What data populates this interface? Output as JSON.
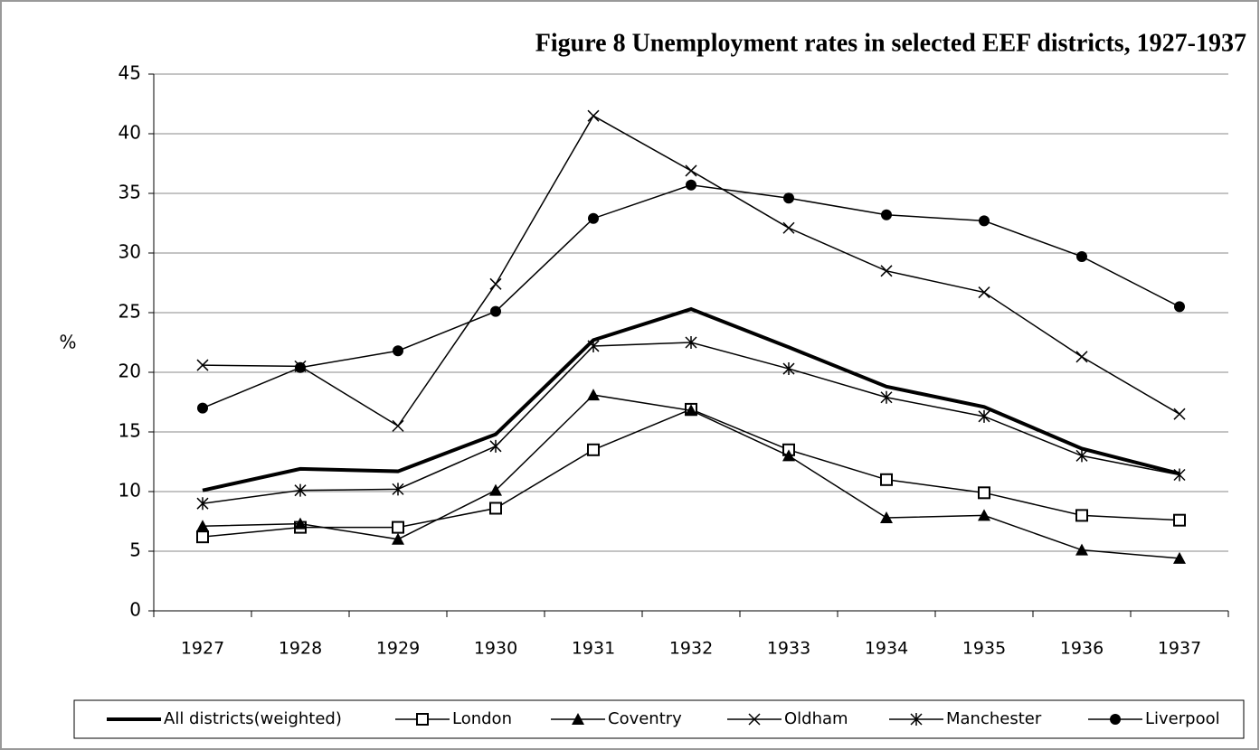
{
  "chart_data": {
    "type": "line",
    "title": "Figure 8 Unemployment rates in selected EEF districts, 1927-1937",
    "y_label": "%",
    "categories": [
      "1927",
      "1928",
      "1929",
      "1930",
      "1931",
      "1932",
      "1933",
      "1934",
      "1935",
      "1936",
      "1937"
    ],
    "series": [
      {
        "name": "All districts(weighted)",
        "color": "#000000",
        "marker": "none",
        "line_width": 4,
        "values": [
          10.1,
          11.9,
          11.7,
          14.8,
          22.7,
          25.3,
          22.1,
          18.8,
          17.1,
          13.6,
          11.5
        ]
      },
      {
        "name": "London",
        "color": "#000000",
        "marker": "square",
        "line_width": 1.5,
        "values": [
          6.2,
          7.0,
          7.0,
          8.6,
          13.5,
          16.9,
          13.5,
          11.0,
          9.9,
          8.0,
          7.6
        ]
      },
      {
        "name": "Coventry",
        "color": "#000000",
        "marker": "triangle",
        "line_width": 1.5,
        "values": [
          7.1,
          7.3,
          6.0,
          10.1,
          18.1,
          16.8,
          13.0,
          7.8,
          8.0,
          5.1,
          4.4
        ]
      },
      {
        "name": "Oldham",
        "color": "#000000",
        "marker": "x",
        "line_width": 1.5,
        "values": [
          20.6,
          20.5,
          15.5,
          27.4,
          41.5,
          36.9,
          32.1,
          28.5,
          26.7,
          21.3,
          16.5
        ]
      },
      {
        "name": "Manchester",
        "color": "#000000",
        "marker": "star",
        "line_width": 1.5,
        "values": [
          9.0,
          10.1,
          10.2,
          13.8,
          22.2,
          22.5,
          20.3,
          17.9,
          16.3,
          13.0,
          11.4
        ]
      },
      {
        "name": "Liverpool",
        "color": "#000000",
        "marker": "circle",
        "line_width": 1.5,
        "values": [
          17.0,
          20.4,
          21.8,
          25.1,
          32.9,
          35.7,
          34.6,
          33.2,
          32.7,
          29.7,
          25.5
        ]
      }
    ],
    "ylim": [
      0,
      45
    ],
    "yticks": [
      0,
      5,
      10,
      15,
      20,
      25,
      30,
      35,
      40,
      45
    ],
    "grid": true,
    "legend": "bottom"
  }
}
